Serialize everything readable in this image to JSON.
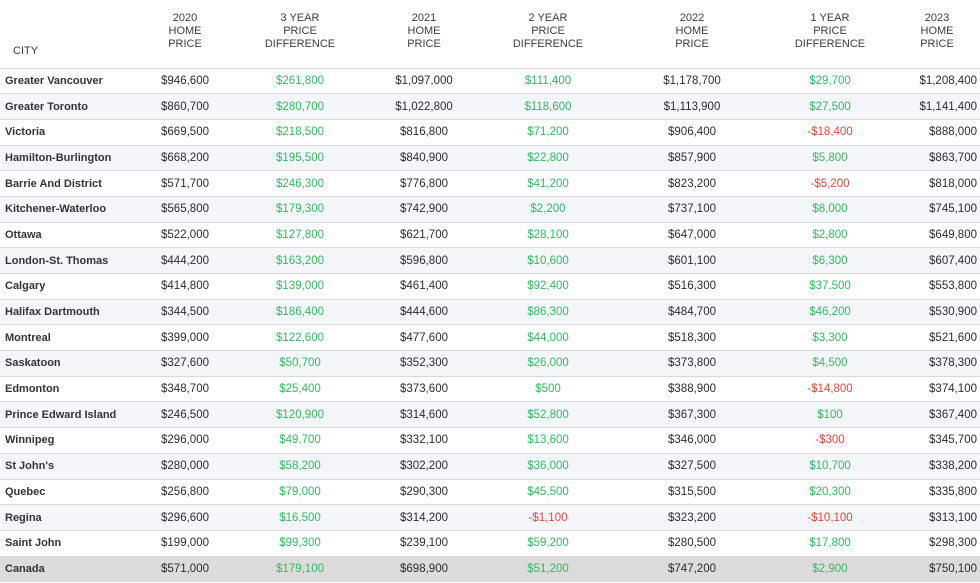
{
  "colors": {
    "positive": "#35b861",
    "negative": "#e0483e",
    "row_alt": "#f4f6fa",
    "total_row": "#dcdcdc"
  },
  "chart_data": {
    "type": "table",
    "headers": [
      "CITY",
      "2020\nHOME\nPRICE",
      "3 YEAR\nPRICE\nDIFFERENCE",
      "2021\nHOME\nPRICE",
      "2 YEAR\nPRICE\nDIFFERENCE",
      "2022\nHOME\nPRICE",
      "1 YEAR\nPRICE\nDIFFERENCE",
      "2023\nHOME\nPRICE"
    ],
    "rows": [
      [
        "Greater Vancouver",
        "$946,600",
        "$261,800",
        "$1,097,000",
        "$111,400",
        "$1,178,700",
        "$29,700",
        "$1,208,400"
      ],
      [
        "Greater Toronto",
        "$860,700",
        "$280,700",
        "$1,022,800",
        "$118,600",
        "$1,113,900",
        "$27,500",
        "$1,141,400"
      ],
      [
        "Victoria",
        "$669,500",
        "$218,500",
        "$816,800",
        "$71,200",
        "$906,400",
        "-$18,400",
        "$888,000"
      ],
      [
        "Hamilton-Burlington",
        "$668,200",
        "$195,500",
        "$840,900",
        "$22,800",
        "$857,900",
        "$5,800",
        "$863,700"
      ],
      [
        "Barrie And District",
        "$571,700",
        "$246,300",
        "$776,800",
        "$41,200",
        "$823,200",
        "-$5,200",
        "$818,000"
      ],
      [
        "Kitchener-Waterloo",
        "$565,800",
        "$179,300",
        "$742,900",
        "$2,200",
        "$737,100",
        "$8,000",
        "$745,100"
      ],
      [
        "Ottawa",
        "$522,000",
        "$127,800",
        "$621,700",
        "$28,100",
        "$647,000",
        "$2,800",
        "$649,800"
      ],
      [
        "London-St. Thomas",
        "$444,200",
        "$163,200",
        "$596,800",
        "$10,600",
        "$601,100",
        "$6,300",
        "$607,400"
      ],
      [
        "Calgary",
        "$414,800",
        "$139,000",
        "$461,400",
        "$92,400",
        "$516,300",
        "$37,500",
        "$553,800"
      ],
      [
        "Halifax Dartmouth",
        "$344,500",
        "$186,400",
        "$444,600",
        "$86,300",
        "$484,700",
        "$46,200",
        "$530,900"
      ],
      [
        "Montreal",
        "$399,000",
        "$122,600",
        "$477,600",
        "$44,000",
        "$518,300",
        "$3,300",
        "$521,600"
      ],
      [
        "Saskatoon",
        "$327,600",
        "$50,700",
        "$352,300",
        "$26,000",
        "$373,800",
        "$4,500",
        "$378,300"
      ],
      [
        "Edmonton",
        "$348,700",
        "$25,400",
        "$373,600",
        "$500",
        "$388,900",
        "-$14,800",
        "$374,100"
      ],
      [
        "Prince Edward Island",
        "$246,500",
        "$120,900",
        "$314,600",
        "$52,800",
        "$367,300",
        "$100",
        "$367,400"
      ],
      [
        "Winnipeg",
        "$296,000",
        "$49,700",
        "$332,100",
        "$13,600",
        "$346,000",
        "-$300",
        "$345,700"
      ],
      [
        "St John's",
        "$280,000",
        "$58,200",
        "$302,200",
        "$36,000",
        "$327,500",
        "$10,700",
        "$338,200"
      ],
      [
        "Quebec",
        "$256,800",
        "$79,000",
        "$290,300",
        "$45,500",
        "$315,500",
        "$20,300",
        "$335,800"
      ],
      [
        "Regina",
        "$296,600",
        "$16,500",
        "$314,200",
        "-$1,100",
        "$323,200",
        "-$10,100",
        "$313,100"
      ],
      [
        "Saint John",
        "$199,000",
        "$99,300",
        "$239,100",
        "$59,200",
        "$280,500",
        "$17,800",
        "$298,300"
      ],
      [
        "Canada",
        "$571,000",
        "$179,100",
        "$698,900",
        "$51,200",
        "$747,200",
        "$2,900",
        "$750,100"
      ]
    ]
  }
}
